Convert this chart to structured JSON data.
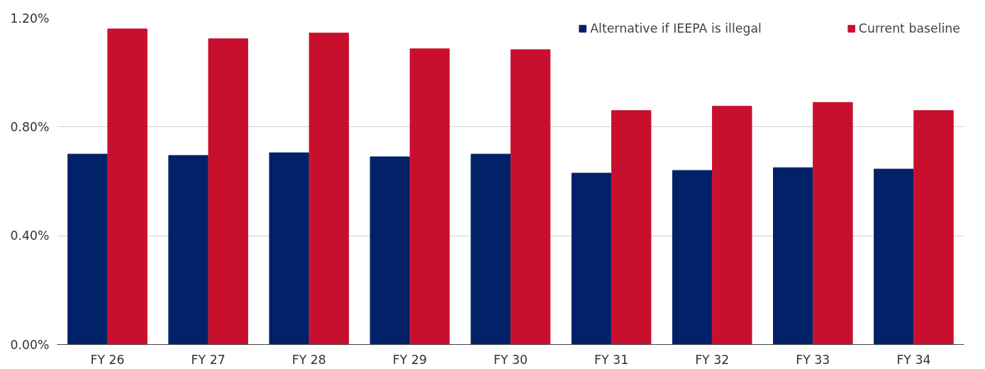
{
  "chart_data": {
    "type": "bar",
    "categories": [
      "FY 26",
      "FY 27",
      "FY 28",
      "FY 29",
      "FY 30",
      "FY 31",
      "FY 32",
      "FY 33",
      "FY 34"
    ],
    "series": [
      {
        "name": "Alternative if IEEPA is illegal",
        "color": "#012169",
        "values": [
          0.7,
          0.695,
          0.705,
          0.69,
          0.7,
          0.63,
          0.64,
          0.65,
          0.645
        ]
      },
      {
        "name": "Current baseline",
        "color": "#c8102e",
        "values": [
          1.16,
          1.124,
          1.145,
          1.087,
          1.084,
          0.86,
          0.876,
          0.89,
          0.86
        ]
      }
    ],
    "ylim": [
      0,
      1.2
    ],
    "yticks": [
      {
        "value": 0,
        "label": "0.00%"
      },
      {
        "value": 0.4,
        "label": "0.40%"
      },
      {
        "value": 0.8,
        "label": "0.80%"
      },
      {
        "value": 1.2,
        "label": "1.20%"
      }
    ],
    "grid": "y",
    "legend": "top right"
  }
}
